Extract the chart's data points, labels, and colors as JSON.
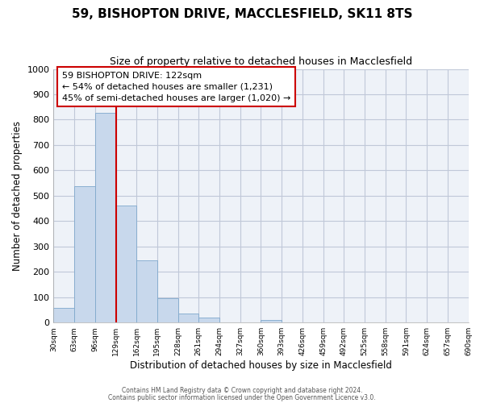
{
  "title": "59, BISHOPTON DRIVE, MACCLESFIELD, SK11 8TS",
  "subtitle": "Size of property relative to detached houses in Macclesfield",
  "xlabel": "Distribution of detached houses by size in Macclesfield",
  "ylabel": "Number of detached properties",
  "bar_values": [
    57,
    537,
    828,
    460,
    245,
    97,
    37,
    20,
    0,
    0,
    10,
    0,
    0,
    0,
    0,
    0,
    0,
    0,
    0,
    0
  ],
  "bin_labels": [
    "30sqm",
    "63sqm",
    "96sqm",
    "129sqm",
    "162sqm",
    "195sqm",
    "228sqm",
    "261sqm",
    "294sqm",
    "327sqm",
    "360sqm",
    "393sqm",
    "426sqm",
    "459sqm",
    "492sqm",
    "525sqm",
    "558sqm",
    "591sqm",
    "624sqm",
    "657sqm",
    "690sqm"
  ],
  "bar_color": "#c8d8ec",
  "bar_edge_color": "#7fa8cc",
  "vline_x": 3,
  "vline_color": "#cc0000",
  "ylim": [
    0,
    1000
  ],
  "yticks": [
    0,
    100,
    200,
    300,
    400,
    500,
    600,
    700,
    800,
    900,
    1000
  ],
  "annotation_text": "59 BISHOPTON DRIVE: 122sqm\n← 54% of detached houses are smaller (1,231)\n45% of semi-detached houses are larger (1,020) →",
  "footer_line1": "Contains HM Land Registry data © Crown copyright and database right 2024.",
  "footer_line2": "Contains public sector information licensed under the Open Government Licence v3.0.",
  "background_color": "#ffffff",
  "plot_bg_color": "#eef2f8",
  "grid_color": "#c0c8d8"
}
